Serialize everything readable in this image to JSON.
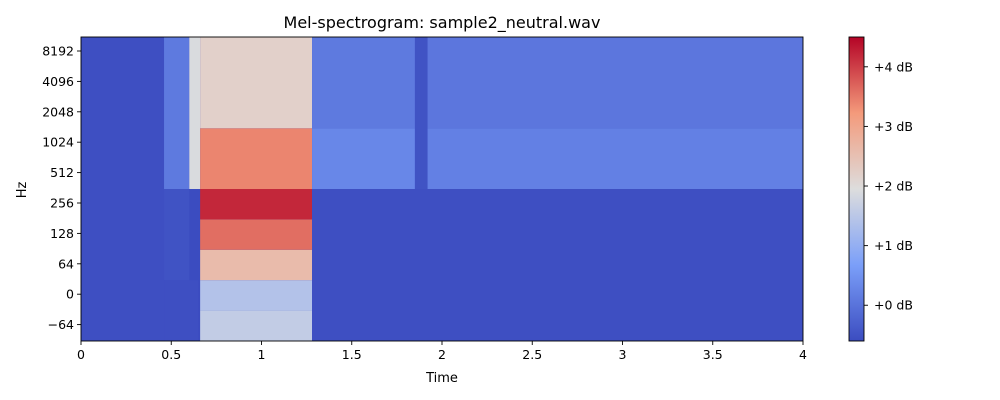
{
  "chart_data": {
    "type": "heatmap",
    "title": "Mel-spectrogram: sample2_neutral.wav",
    "xlabel": "Time",
    "ylabel": "Hz",
    "xlim": [
      0,
      4
    ],
    "x_ticks": [
      "0",
      "0.5",
      "1",
      "1.5",
      "2",
      "2.5",
      "3",
      "3.5",
      "4"
    ],
    "y_ticks": [
      "8192",
      "4096",
      "2048",
      "1024",
      "512",
      "256",
      "128",
      "64",
      "0",
      "−64"
    ],
    "colorbar": {
      "label_ticks": [
        "+4 dB",
        "+3 dB",
        "+2 dB",
        "+1 dB",
        "+0 dB"
      ],
      "range_db": [
        -0.6,
        4.5
      ],
      "colormap": "coolwarm"
    },
    "regions": [
      {
        "t0": 0.0,
        "t1": 0.46,
        "band_lo": 0,
        "band_hi": 10,
        "db": -0.55
      },
      {
        "t0": 0.46,
        "t1": 0.65,
        "band_lo": 0,
        "band_hi": 2,
        "db": -0.55
      },
      {
        "t0": 0.46,
        "t1": 0.6,
        "band_lo": 2,
        "band_hi": 5,
        "db": -0.5
      },
      {
        "t0": 0.46,
        "t1": 0.6,
        "band_lo": 5,
        "band_hi": 10,
        "db": 0.1
      },
      {
        "t0": 0.6,
        "t1": 0.66,
        "band_lo": 5,
        "band_hi": 10,
        "db": 1.9
      },
      {
        "t0": 0.66,
        "t1": 1.28,
        "band_lo": 0,
        "band_hi": 1,
        "db": 1.6
      },
      {
        "t0": 0.66,
        "t1": 1.28,
        "band_lo": 1,
        "band_hi": 2,
        "db": 1.4
      },
      {
        "t0": 0.66,
        "t1": 1.28,
        "band_lo": 2,
        "band_hi": 3,
        "db": 2.6
      },
      {
        "t0": 0.66,
        "t1": 1.28,
        "band_lo": 3,
        "band_hi": 4,
        "db": 3.6
      },
      {
        "t0": 0.66,
        "t1": 1.28,
        "band_lo": 4,
        "band_hi": 5,
        "db": 4.2
      },
      {
        "t0": 0.66,
        "t1": 1.28,
        "band_lo": 5,
        "band_hi": 7,
        "db": 3.4
      },
      {
        "t0": 0.66,
        "t1": 1.28,
        "band_lo": 7,
        "band_hi": 10,
        "db": 2.2
      },
      {
        "t0": 1.28,
        "t1": 4.0,
        "band_lo": 0,
        "band_hi": 5,
        "db": -0.55
      },
      {
        "t0": 1.28,
        "t1": 1.85,
        "band_lo": 5,
        "band_hi": 7,
        "db": 0.3
      },
      {
        "t0": 1.28,
        "t1": 1.85,
        "band_lo": 7,
        "band_hi": 10,
        "db": 0.1
      },
      {
        "t0": 1.85,
        "t1": 1.92,
        "band_lo": 5,
        "band_hi": 10,
        "db": -0.5
      },
      {
        "t0": 1.92,
        "t1": 4.0,
        "band_lo": 5,
        "band_hi": 7,
        "db": 0.2
      },
      {
        "t0": 1.92,
        "t1": 4.0,
        "band_lo": 7,
        "band_hi": 10,
        "db": 0.05
      }
    ]
  }
}
